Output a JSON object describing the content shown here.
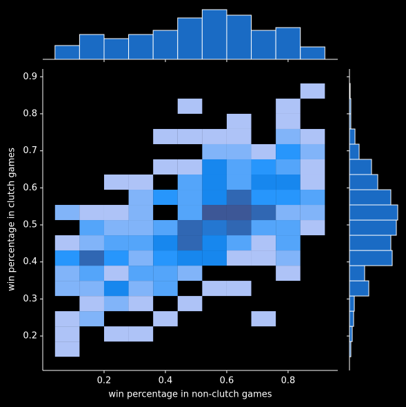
{
  "chart_data": {
    "type": "hist2d",
    "xlabel": "win percentage in non-clutch games",
    "ylabel": "win percentage in clutch games",
    "xlim": [
      0,
      0.962
    ],
    "ylim": [
      0.107,
      0.921
    ],
    "xticks": [
      0.2,
      0.4,
      0.6,
      0.8
    ],
    "yticks": [
      0.2,
      0.3,
      0.4,
      0.5,
      0.6,
      0.7,
      0.8,
      0.9
    ],
    "xbins": [
      0.04,
      0.12,
      0.2,
      0.28,
      0.36,
      0.44,
      0.52,
      0.6,
      0.68,
      0.76,
      0.84,
      0.92
    ],
    "ybins": [
      0.144,
      0.185,
      0.226,
      0.267,
      0.308,
      0.349,
      0.39,
      0.431,
      0.472,
      0.513,
      0.554,
      0.595,
      0.636,
      0.677,
      0.718,
      0.759,
      0.8,
      0.841,
      0.882
    ],
    "counts": [
      [
        1,
        0,
        0,
        0,
        0,
        0,
        0,
        0,
        0,
        0,
        0
      ],
      [
        1,
        0,
        1,
        1,
        0,
        0,
        0,
        0,
        0,
        0,
        0
      ],
      [
        1,
        2,
        0,
        0,
        1,
        0,
        0,
        0,
        1,
        0,
        0
      ],
      [
        0,
        1,
        2,
        1,
        0,
        1,
        0,
        0,
        0,
        0,
        0
      ],
      [
        2,
        2,
        5,
        2,
        3,
        0,
        1,
        1,
        0,
        0,
        0
      ],
      [
        2,
        3,
        1,
        3,
        3,
        2,
        0,
        0,
        0,
        1,
        0
      ],
      [
        4,
        7,
        4,
        2,
        4,
        5,
        5,
        1,
        1,
        2,
        0
      ],
      [
        1,
        2,
        3,
        3,
        5,
        7,
        5,
        3,
        1,
        3,
        0
      ],
      [
        0,
        3,
        2,
        2,
        3,
        7,
        6,
        7,
        3,
        3,
        1
      ],
      [
        2,
        1,
        1,
        2,
        0,
        3,
        8,
        8,
        7,
        2,
        2
      ],
      [
        0,
        0,
        0,
        2,
        4,
        3,
        5,
        7,
        4,
        4,
        3
      ],
      [
        0,
        0,
        1,
        1,
        0,
        3,
        5,
        3,
        5,
        5,
        1
      ],
      [
        0,
        0,
        0,
        0,
        1,
        1,
        5,
        3,
        4,
        3,
        1
      ],
      [
        0,
        0,
        0,
        0,
        0,
        0,
        2,
        2,
        1,
        4,
        2
      ],
      [
        0,
        0,
        0,
        0,
        1,
        1,
        1,
        1,
        0,
        2,
        1
      ],
      [
        0,
        0,
        0,
        0,
        0,
        0,
        0,
        1,
        0,
        1,
        0
      ],
      [
        0,
        0,
        0,
        0,
        0,
        1,
        0,
        0,
        0,
        1,
        0
      ],
      [
        0,
        0,
        0,
        0,
        0,
        0,
        0,
        0,
        0,
        0,
        1
      ]
    ],
    "cmap": [
      "#aec3f7",
      "#118ffd",
      "#3d5796"
    ],
    "top_hist": {
      "values": [
        10,
        18,
        15,
        18,
        21,
        30,
        36,
        32,
        21,
        23,
        9
      ],
      "ylim": [
        0,
        39
      ]
    },
    "right_hist": {
      "values": [
        1,
        2,
        3,
        3.5,
        14,
        11,
        31,
        30,
        34,
        35,
        30,
        20.5,
        16,
        7,
        4,
        1,
        1,
        0.5
      ],
      "xlim": [
        0,
        39
      ]
    },
    "hist_color": "#1a6bc4"
  }
}
